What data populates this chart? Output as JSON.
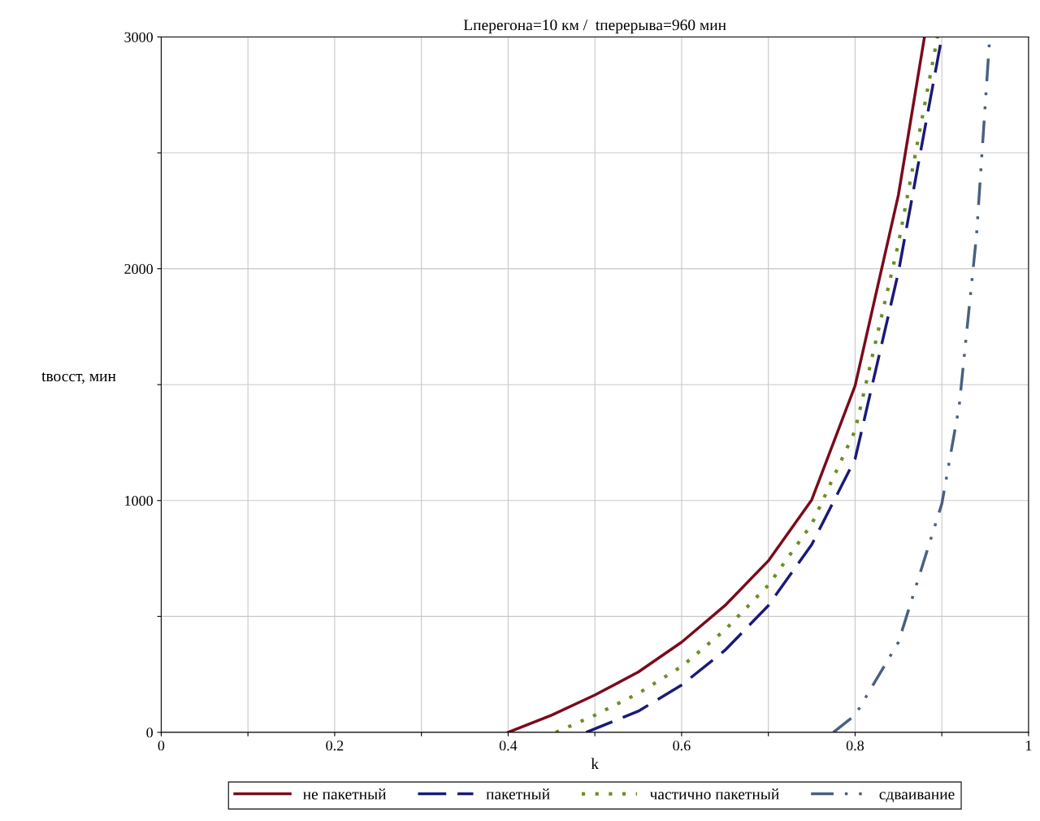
{
  "chart_data": {
    "type": "line",
    "title": "Lперегона=10 км /  tперерыва=960 мин",
    "xlabel": "k",
    "ylabel": "tвосст, мин",
    "xlim": [
      0,
      1
    ],
    "ylim": [
      0,
      3000
    ],
    "xticks": [
      0,
      {
        "value": 0.1,
        "label": null
      },
      0.2,
      {
        "value": 0.3,
        "label": null
      },
      0.4,
      {
        "value": 0.5,
        "label": null
      },
      0.6,
      {
        "value": 0.7,
        "label": null
      },
      0.8,
      {
        "value": 0.9,
        "label": null
      },
      1
    ],
    "yticks": [
      0,
      {
        "value": 500,
        "label": null
      },
      1000,
      {
        "value": 1500,
        "label": null
      },
      2000,
      {
        "value": 2500,
        "label": null
      },
      3000
    ],
    "grid": true,
    "legend": "bottom",
    "marker": "none",
    "series": [
      {
        "name": "не пакетный",
        "color": "#7b0a1a",
        "line_style": "solid",
        "x": [
          0.4,
          0.45,
          0.5,
          0.55,
          0.6,
          0.65,
          0.7,
          0.75,
          0.8,
          0.85,
          0.88
        ],
        "values": [
          0,
          74,
          161,
          260,
          389,
          547,
          740,
          1003,
          1495,
          2319,
          3000
        ]
      },
      {
        "name": "пакетный",
        "color": "#1a1a7a",
        "line_style": "dashed",
        "x": [
          0.49,
          0.55,
          0.6,
          0.65,
          0.7,
          0.75,
          0.8,
          0.85,
          0.875,
          0.9
        ],
        "values": [
          0,
          91,
          204,
          354,
          547,
          810,
          1179,
          1986,
          2495,
          3000
        ]
      },
      {
        "name": "частично пакетный",
        "color": "#6b8e23",
        "line_style": "dotted",
        "x": [
          0.455,
          0.5,
          0.55,
          0.6,
          0.65,
          0.7,
          0.75,
          0.8,
          0.85,
          0.895
        ],
        "values": [
          0,
          74,
          168,
          284,
          442,
          635,
          898,
          1302,
          2109,
          3000
        ]
      },
      {
        "name": "сдваивание",
        "color": "#4a6080",
        "line_style": "dashdot",
        "x": [
          0.775,
          0.8,
          0.85,
          0.9,
          0.92,
          0.94,
          0.955
        ],
        "values": [
          0,
          74,
          389,
          986,
          1407,
          2144,
          2986
        ]
      }
    ]
  }
}
